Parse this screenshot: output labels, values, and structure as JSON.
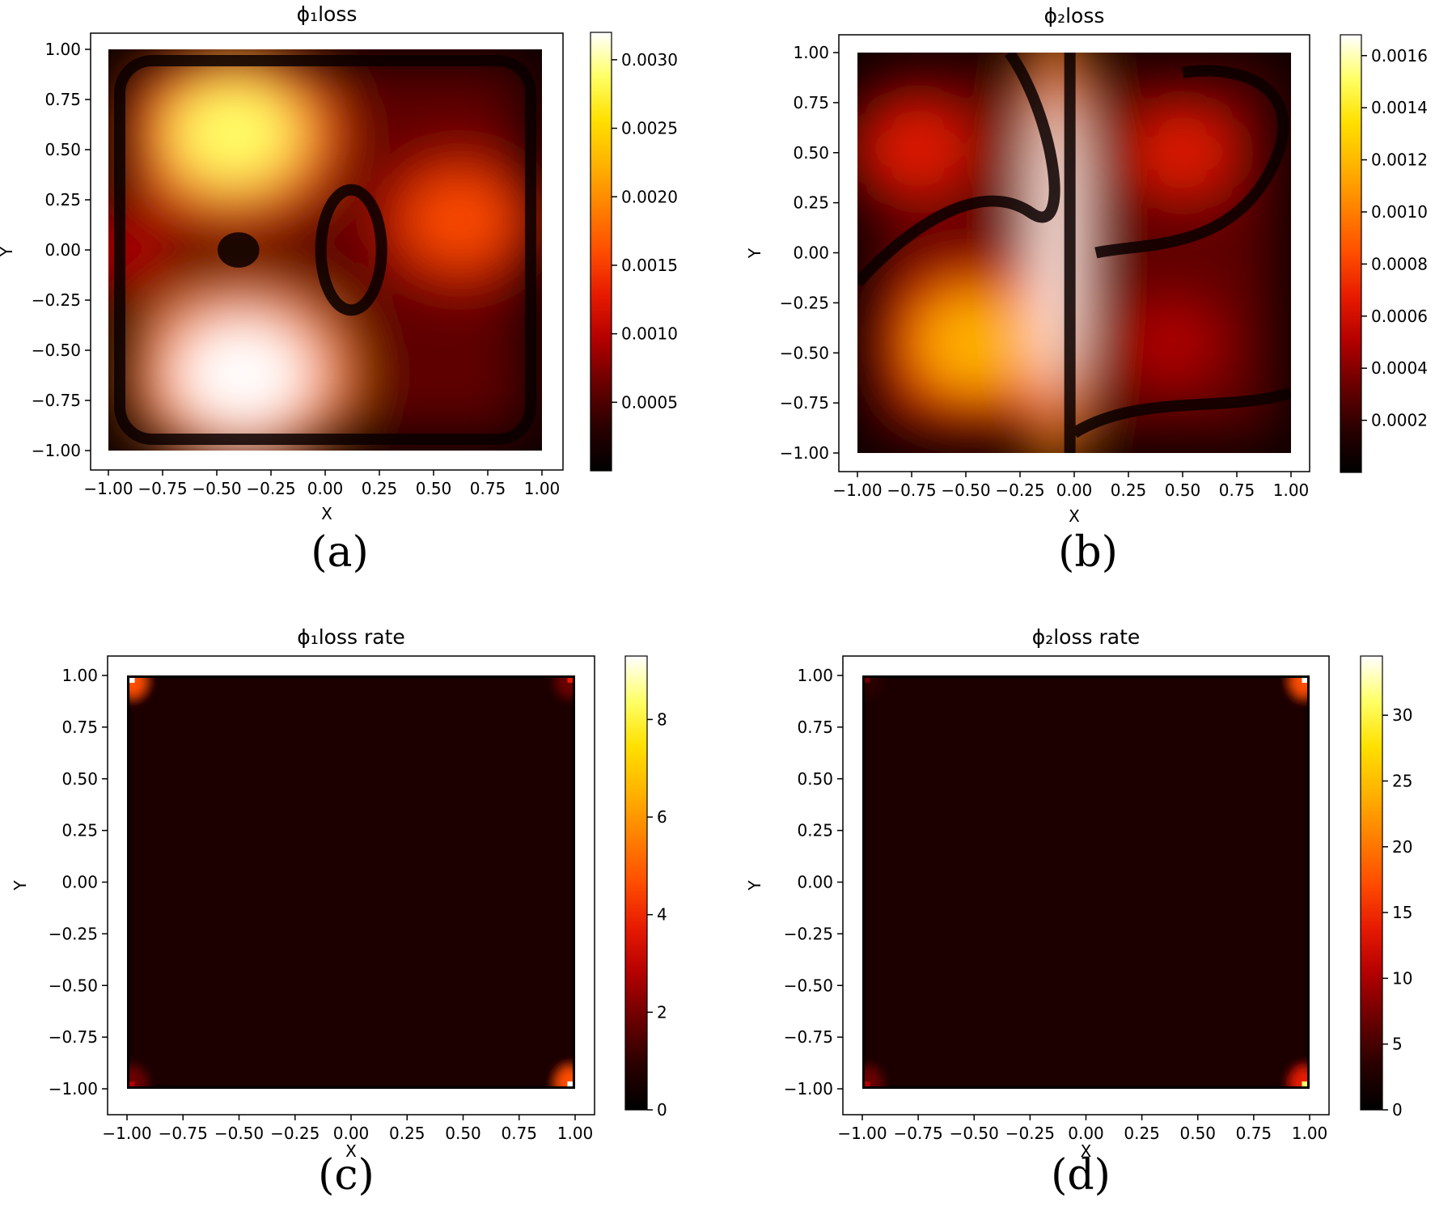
{
  "colormap": [
    "#000000",
    "#2a0000",
    "#6b0000",
    "#b30000",
    "#e61a00",
    "#ff4d00",
    "#ff8000",
    "#ffb300",
    "#ffe000",
    "#ffff66",
    "#ffffff"
  ],
  "chart_data": [
    {
      "type": "heatmap",
      "panel": "a",
      "title": "ϕ₁loss",
      "caption": "(a)",
      "xlabel": "X",
      "ylabel": "Y",
      "xlim": [
        -1.0,
        1.0
      ],
      "ylim": [
        -1.0,
        1.0
      ],
      "xticks": [
        "−1.00",
        "−0.75",
        "−0.50",
        "−0.25",
        "0.00",
        "0.25",
        "0.50",
        "0.75",
        "1.00"
      ],
      "yticks": [
        "1.00",
        "0.75",
        "0.50",
        "0.25",
        "0.00",
        "−0.25",
        "−0.50",
        "−0.75",
        "−1.00"
      ],
      "colorbar_range": [
        0.0,
        0.0032
      ],
      "colorbar_ticks": [
        {
          "value": 0.0005,
          "label": "0.0005"
        },
        {
          "value": 0.001,
          "label": "0.0010"
        },
        {
          "value": 0.0015,
          "label": "0.0015"
        },
        {
          "value": 0.002,
          "label": "0.0020"
        },
        {
          "value": 0.0025,
          "label": "0.0025"
        },
        {
          "value": 0.003,
          "label": "0.0030"
        }
      ],
      "hotspots": [
        {
          "x": -0.42,
          "y": 0.58,
          "value": 0.0029
        },
        {
          "x": -0.38,
          "y": -0.62,
          "value": 0.0032
        },
        {
          "x": 0.62,
          "y": 0.15,
          "value": 0.0016
        },
        {
          "x": -0.9,
          "y": 0.0,
          "value": 0.0008
        }
      ]
    },
    {
      "type": "heatmap",
      "panel": "b",
      "title": "ϕ₂loss",
      "caption": "(b)",
      "xlabel": "X",
      "ylabel": "Y",
      "xlim": [
        -1.0,
        1.0
      ],
      "ylim": [
        -1.0,
        1.0
      ],
      "xticks": [
        "−1.00",
        "−0.75",
        "−0.50",
        "−0.25",
        "0.00",
        "0.25",
        "0.50",
        "0.75",
        "1.00"
      ],
      "yticks": [
        "1.00",
        "0.75",
        "0.50",
        "0.25",
        "0.00",
        "−0.25",
        "−0.50",
        "−0.75",
        "−1.00"
      ],
      "colorbar_range": [
        0.0,
        0.00168
      ],
      "colorbar_ticks": [
        {
          "value": 0.0002,
          "label": "0.0002"
        },
        {
          "value": 0.0004,
          "label": "0.0004"
        },
        {
          "value": 0.0006,
          "label": "0.0006"
        },
        {
          "value": 0.0008,
          "label": "0.0008"
        },
        {
          "value": 0.001,
          "label": "0.0010"
        },
        {
          "value": 0.0012,
          "label": "0.0012"
        },
        {
          "value": 0.0014,
          "label": "0.0014"
        },
        {
          "value": 0.0016,
          "label": "0.0016"
        }
      ],
      "hotspots": [
        {
          "x": -0.08,
          "y": 0.05,
          "value": 0.00168
        },
        {
          "x": -0.45,
          "y": -0.45,
          "value": 0.00125
        },
        {
          "x": -0.72,
          "y": 0.52,
          "value": 0.00072
        },
        {
          "x": 0.5,
          "y": 0.5,
          "value": 0.0006
        },
        {
          "x": 0.45,
          "y": -0.45,
          "value": 0.0005
        }
      ]
    },
    {
      "type": "heatmap",
      "panel": "c",
      "title": "ϕ₁loss rate",
      "caption": "(c)",
      "xlabel": "X",
      "ylabel": "Y",
      "xlim": [
        -1.0,
        1.0
      ],
      "ylim": [
        -1.0,
        1.0
      ],
      "xticks": [
        "−1.00",
        "−0.75",
        "−0.50",
        "−0.25",
        "0.00",
        "0.25",
        "0.50",
        "0.75",
        "1.00"
      ],
      "yticks": [
        "1.00",
        "0.75",
        "0.50",
        "0.25",
        "0.00",
        "−0.25",
        "−0.50",
        "−0.75",
        "−1.00"
      ],
      "colorbar_range": [
        0.0,
        9.3
      ],
      "colorbar_ticks": [
        {
          "value": 0,
          "label": "0"
        },
        {
          "value": 2,
          "label": "2"
        },
        {
          "value": 4,
          "label": "4"
        },
        {
          "value": 6,
          "label": "6"
        },
        {
          "value": 8,
          "label": "8"
        }
      ],
      "hotspots": [
        {
          "x": -0.98,
          "y": 0.98,
          "value": 9.3
        },
        {
          "x": 0.98,
          "y": -0.98,
          "value": 9.0
        },
        {
          "x": 0.98,
          "y": 0.98,
          "value": 3.5
        },
        {
          "x": -0.98,
          "y": -0.98,
          "value": 3.0
        }
      ]
    },
    {
      "type": "heatmap",
      "panel": "d",
      "title": "ϕ₂loss rate",
      "caption": "(d)",
      "xlabel": "X",
      "ylabel": "Y",
      "xlim": [
        -1.0,
        1.0
      ],
      "ylim": [
        -1.0,
        1.0
      ],
      "xticks": [
        "−1.00",
        "−0.75",
        "−0.50",
        "−0.25",
        "0.00",
        "0.25",
        "0.50",
        "0.75",
        "1.00"
      ],
      "yticks": [
        "1.00",
        "0.75",
        "0.50",
        "0.25",
        "0.00",
        "−0.25",
        "−0.50",
        "−0.75",
        "−1.00"
      ],
      "colorbar_range": [
        0.0,
        34.5
      ],
      "colorbar_ticks": [
        {
          "value": 0,
          "label": "0"
        },
        {
          "value": 5,
          "label": "5"
        },
        {
          "value": 10,
          "label": "10"
        },
        {
          "value": 15,
          "label": "15"
        },
        {
          "value": 20,
          "label": "20"
        },
        {
          "value": 25,
          "label": "25"
        },
        {
          "value": 30,
          "label": "30"
        }
      ],
      "hotspots": [
        {
          "x": 0.98,
          "y": 0.98,
          "value": 34.0
        },
        {
          "x": 0.98,
          "y": -0.98,
          "value": 30.0
        },
        {
          "x": -0.98,
          "y": -0.98,
          "value": 12.0
        },
        {
          "x": -0.98,
          "y": 0.98,
          "value": 8.0
        }
      ]
    }
  ]
}
